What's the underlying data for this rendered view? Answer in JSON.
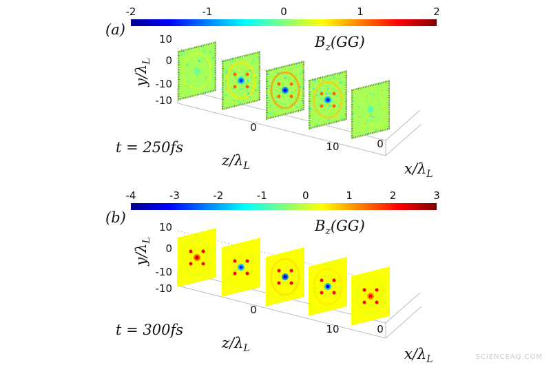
{
  "figure": {
    "watermark": "SCIENCEAQ.COM"
  },
  "chart_data": [
    {
      "type": "heatmap",
      "panel_label": "(a)",
      "field_label": "B_z(GG)",
      "time_label": "t = 250fs",
      "colorbar": {
        "min": -2,
        "max": 2,
        "ticks": [
          "-2",
          "-1",
          "0",
          "1",
          "2"
        ],
        "colormap": "jet"
      },
      "xlabel": "x/λ_L",
      "ylabel": "y/λ_L",
      "zlabel": "z/λ_L",
      "y_ticks": [
        "10",
        "0",
        "-10",
        "-10"
      ],
      "z_ticks": [
        "0",
        "10"
      ],
      "x_ticks": [
        "0"
      ],
      "slices": [
        {
          "center_value": -0.1,
          "ring_value": 0.3,
          "speckle": 0.55,
          "edge_dark": true
        },
        {
          "center_value": -1.3,
          "ring_value": 0.6,
          "speckle": 0.75,
          "edge_dark": true
        },
        {
          "center_value": -1.6,
          "ring_value": 0.9,
          "speckle": 0.85,
          "edge_dark": true
        },
        {
          "center_value": -1.4,
          "ring_value": 0.7,
          "speckle": 0.8,
          "edge_dark": true
        },
        {
          "center_value": -0.2,
          "ring_value": 0.2,
          "speckle": 0.6,
          "edge_dark": true
        }
      ]
    },
    {
      "type": "heatmap",
      "panel_label": "(b)",
      "field_label": "B_z(GG)",
      "time_label": "t = 300fs",
      "colorbar": {
        "min": -4,
        "max": 3,
        "ticks": [
          "-4",
          "-3",
          "-2",
          "-1",
          "0",
          "1",
          "2",
          "3"
        ],
        "colormap": "jet"
      },
      "xlabel": "x/λ_L",
      "ylabel": "y/λ_L",
      "zlabel": "z/λ_L",
      "y_ticks": [
        "10",
        "0",
        "-10",
        "-10"
      ],
      "z_ticks": [
        "0",
        "10"
      ],
      "x_ticks": [
        "0"
      ],
      "slices": [
        {
          "center_value": 2.6,
          "ring_value": 0.2,
          "speckle": 0.1,
          "edge_dark": false
        },
        {
          "center_value": -3.0,
          "ring_value": 0.4,
          "speckle": 0.15,
          "edge_dark": false
        },
        {
          "center_value": -3.8,
          "ring_value": 0.6,
          "speckle": 0.15,
          "edge_dark": false
        },
        {
          "center_value": -3.2,
          "ring_value": 0.5,
          "speckle": 0.15,
          "edge_dark": false
        },
        {
          "center_value": 2.2,
          "ring_value": 0.2,
          "speckle": 0.1,
          "edge_dark": false
        }
      ]
    }
  ]
}
